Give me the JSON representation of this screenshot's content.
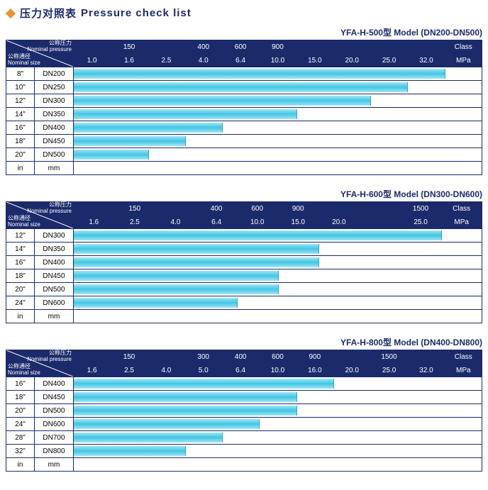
{
  "page_title_cn": "压力对照表",
  "page_title_en": "Pressure check list",
  "colors": {
    "header_bg": "#1b2a6b",
    "header_text": "#ffffff",
    "border": "#1b2a6b",
    "bar_gradient_light": "#9ee6f5",
    "bar_gradient_mid": "#43c5e4",
    "diamond": "#e6952f",
    "background": "#ffffff"
  },
  "corner_labels": {
    "top_cn": "公称压力",
    "top_en": "Nominal pressure",
    "bottom_cn": "公称通径",
    "bottom_en": "Nominal size"
  },
  "footer_units": {
    "in": "in",
    "mm": "mm"
  },
  "charts": [
    {
      "model": "YFA-H-500型  Model (DN200-DN500)",
      "class_row": [
        "",
        "150",
        "",
        "400",
        "600",
        "900",
        "",
        "",
        "",
        "",
        "Class"
      ],
      "mpa_row": [
        "1.0",
        "1.6",
        "2.5",
        "4.0",
        "6.4",
        "10.0",
        "15.0",
        "20.0",
        "25.0",
        "32.0",
        "MPa"
      ],
      "cols": 11,
      "rows": [
        {
          "in": "8\"",
          "mm": "DN200",
          "bar_cols": 10
        },
        {
          "in": "10\"",
          "mm": "DN250",
          "bar_cols": 9
        },
        {
          "in": "12\"",
          "mm": "DN300",
          "bar_cols": 8
        },
        {
          "in": "14\"",
          "mm": "DN350",
          "bar_cols": 6
        },
        {
          "in": "16\"",
          "mm": "DN400",
          "bar_cols": 4
        },
        {
          "in": "18\"",
          "mm": "DN450",
          "bar_cols": 3
        },
        {
          "in": "20\"",
          "mm": "DN500",
          "bar_cols": 2
        }
      ]
    },
    {
      "model": "YFA-H-600型  Model (DN300-DN600)",
      "class_row": [
        "",
        "150",
        "",
        "400",
        "600",
        "900",
        "",
        "",
        "1500",
        "Class"
      ],
      "mpa_row": [
        "1.6",
        "2.5",
        "4.0",
        "6.4",
        "10.0",
        "15.0",
        "20.0",
        "",
        "25.0",
        "MPa"
      ],
      "cols": 10,
      "rows": [
        {
          "in": "12\"",
          "mm": "DN300",
          "bar_cols": 9
        },
        {
          "in": "14\"",
          "mm": "DN350",
          "bar_cols": 6
        },
        {
          "in": "16\"",
          "mm": "DN400",
          "bar_cols": 6
        },
        {
          "in": "18\"",
          "mm": "DN450",
          "bar_cols": 5
        },
        {
          "in": "20\"",
          "mm": "DN500",
          "bar_cols": 5
        },
        {
          "in": "24\"",
          "mm": "DN600",
          "bar_cols": 4
        }
      ]
    },
    {
      "model": "YFA-H-800型  Model (DN400-DN800)",
      "class_row": [
        "",
        "150",
        "",
        "300",
        "400",
        "600",
        "900",
        "",
        "1500",
        "",
        "Class"
      ],
      "mpa_row": [
        "1.6",
        "2.5",
        "4.0",
        "5.0",
        "6.4",
        "10.0",
        "16.0",
        "20.0",
        "25.0",
        "32.0",
        "MPa"
      ],
      "cols": 11,
      "rows": [
        {
          "in": "16\"",
          "mm": "DN400",
          "bar_cols": 7
        },
        {
          "in": "18\"",
          "mm": "DN450",
          "bar_cols": 6
        },
        {
          "in": "20\"",
          "mm": "DN500",
          "bar_cols": 6
        },
        {
          "in": "24\"",
          "mm": "DN600",
          "bar_cols": 5
        },
        {
          "in": "28\"",
          "mm": "DN700",
          "bar_cols": 4
        },
        {
          "in": "32\"",
          "mm": "DN800",
          "bar_cols": 3
        }
      ]
    }
  ]
}
